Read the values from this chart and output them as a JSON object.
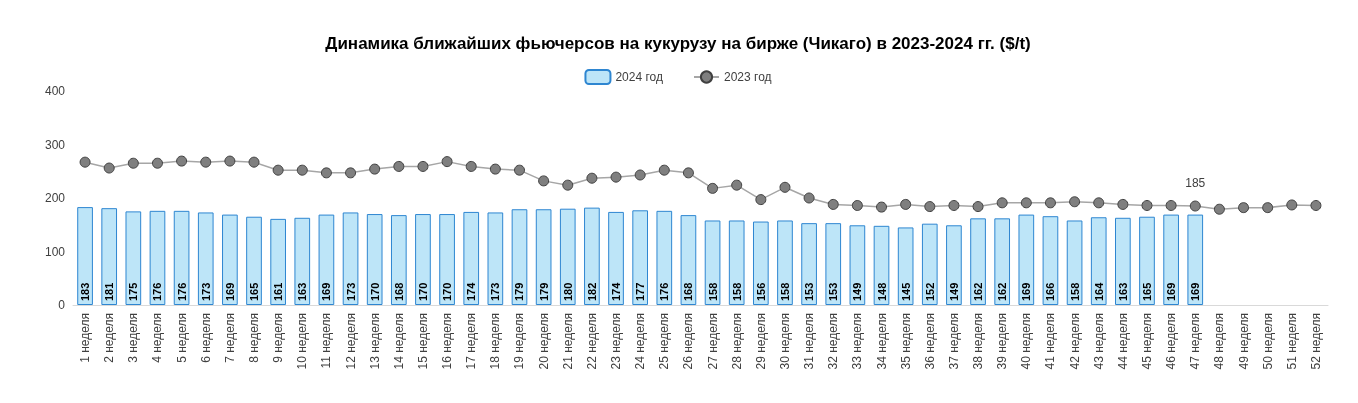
{
  "chart_data": {
    "type": "bar",
    "title": "Динамика ближайших фьючерсов на кукурузу на бирже (Чикаго) в 2023-2024 гг. ($/t)",
    "categories": [
      "1 неделя",
      "2 неделя",
      "3 неделя",
      "4 неделя",
      "5 неделя",
      "6 неделя",
      "7 неделя",
      "8 неделя",
      "9 неделя",
      "10 неделя",
      "11 неделя",
      "12 неделя",
      "13 неделя",
      "14 неделя",
      "15 неделя",
      "16 неделя",
      "17 неделя",
      "18 неделя",
      "19 неделя",
      "20 неделя",
      "21 неделя",
      "22 неделя",
      "23 неделя",
      "24 неделя",
      "25 неделя",
      "26 неделя",
      "27 неделя",
      "28 неделя",
      "29 неделя",
      "30 неделя",
      "31 неделя",
      "32 неделя",
      "33 неделя",
      "34 неделя",
      "35 неделя",
      "36 неделя",
      "37 неделя",
      "38 неделя",
      "39 неделя",
      "40 неделя",
      "41 неделя",
      "42 неделя",
      "43 неделя",
      "44 неделя",
      "45 неделя",
      "46 неделя",
      "47 неделя",
      "48 неделя",
      "49 неделя",
      "50 неделя",
      "51 неделя",
      "52 неделя"
    ],
    "series": [
      {
        "name": "2024 год",
        "color": "#bde5f8",
        "data_labels": true,
        "values": [
          183,
          181,
          175,
          176,
          176,
          173,
          169,
          165,
          161,
          163,
          169,
          173,
          170,
          168,
          170,
          170,
          174,
          173,
          179,
          179,
          180,
          182,
          174,
          177,
          176,
          168,
          158,
          158,
          156,
          158,
          153,
          153,
          149,
          148,
          145,
          152,
          149,
          162,
          162,
          169,
          166,
          158,
          164,
          163,
          165,
          169,
          169,
          null,
          null,
          null,
          null,
          null
        ]
      },
      {
        "name": "2023 год",
        "type": "line",
        "color": "#7f7f7f",
        "marker": "circle",
        "values": [
          267,
          256,
          265,
          265,
          269,
          267,
          269,
          267,
          252,
          252,
          247,
          247,
          254,
          259,
          259,
          268,
          259,
          254,
          252,
          232,
          224,
          237,
          239,
          243,
          252,
          247,
          218,
          224,
          197,
          220,
          200,
          188,
          186,
          183,
          188,
          184,
          186,
          184,
          191,
          191,
          191,
          193,
          191,
          188,
          186,
          186,
          185,
          179,
          182,
          182,
          187,
          186
        ],
        "value_labels": [
          null,
          null,
          null,
          null,
          null,
          null,
          null,
          null,
          null,
          null,
          null,
          null,
          null,
          null,
          null,
          null,
          null,
          null,
          null,
          null,
          null,
          null,
          null,
          null,
          null,
          null,
          null,
          null,
          null,
          null,
          null,
          null,
          null,
          null,
          null,
          null,
          null,
          null,
          null,
          null,
          null,
          null,
          null,
          null,
          null,
          null,
          "185",
          null,
          null,
          null,
          null,
          null
        ]
      }
    ],
    "ylim": [
      0,
      400
    ],
    "yticks": [
      0,
      100,
      200,
      300,
      400
    ],
    "grid": false,
    "legend": "top"
  }
}
